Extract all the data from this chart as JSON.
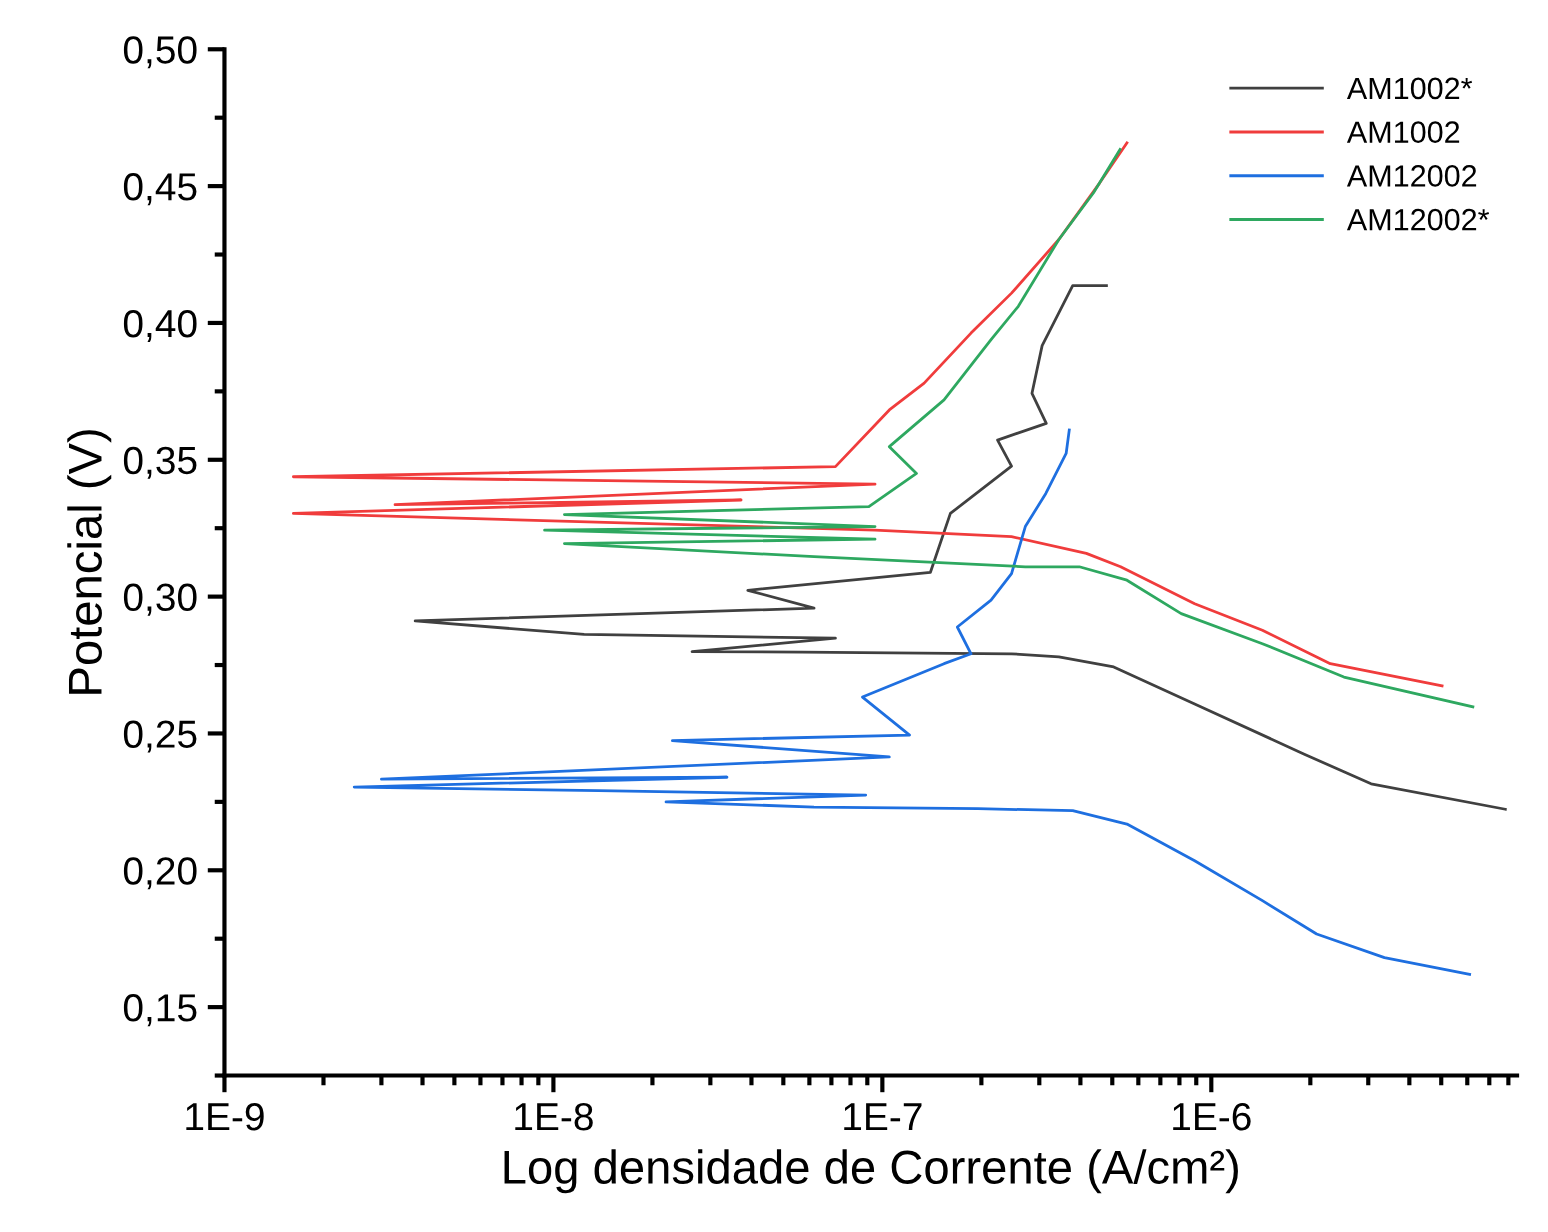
{
  "chart_data": {
    "type": "line",
    "xlabel": "Log densidade de Corrente (A/cm²)",
    "ylabel": "Potencial (V)",
    "log": "x",
    "xlim": [
      1e-09,
      8.5e-06
    ],
    "ylim": [
      0.125,
      0.5
    ],
    "xticks": [
      {
        "value": 1e-09,
        "label": "1E-9"
      },
      {
        "value": 1e-08,
        "label": "1E-8"
      },
      {
        "value": 1e-07,
        "label": "1E-7"
      },
      {
        "value": 1e-06,
        "label": "1E-6"
      }
    ],
    "yticks": [
      {
        "value": 0.15,
        "label": "0,15"
      },
      {
        "value": 0.2,
        "label": "0,20"
      },
      {
        "value": 0.25,
        "label": "0,25"
      },
      {
        "value": 0.3,
        "label": "0,30"
      },
      {
        "value": 0.35,
        "label": "0,35"
      },
      {
        "value": 0.4,
        "label": "0,40"
      },
      {
        "value": 0.45,
        "label": "0,45"
      },
      {
        "value": 0.5,
        "label": "0,50"
      }
    ],
    "grid": false,
    "legend": "top right",
    "marker": "none",
    "line_style": "solid",
    "series": [
      {
        "name": "AM1002*",
        "color": "#404040",
        "x": [
          7.83e-06,
          3.06e-06,
          1.91e-06,
          8.9e-07,
          5.05e-07,
          3.44e-07,
          2.47e-07,
          5.7e-08,
          2.64e-08,
          7.2e-08,
          1.24e-08,
          3.8e-09,
          6.2e-08,
          3.9e-08,
          1.4e-07,
          1.61e-07,
          2.47e-07,
          2.24e-07,
          3.15e-07,
          2.85e-07,
          3.06e-07,
          3.79e-07,
          4.8e-07
        ],
        "values": [
          0.2223,
          0.2316,
          0.2425,
          0.2608,
          0.2743,
          0.278,
          0.2791,
          0.2797,
          0.2799,
          0.2848,
          0.2862,
          0.2911,
          0.2958,
          0.3023,
          0.3089,
          0.3304,
          0.3477,
          0.3572,
          0.3633,
          0.3743,
          0.3917,
          0.4136,
          0.4136
        ]
      },
      {
        "name": "AM1002",
        "color": "#f03c3c",
        "x": [
          5.03e-06,
          2.3e-06,
          1.43e-06,
          8.9e-07,
          5.3e-07,
          4.17e-07,
          2.47e-07,
          9.5e-08,
          1.62e-09,
          3.72e-08,
          3.3e-09,
          9.5e-08,
          1.62e-09,
          7.2e-08,
          1.05e-07,
          1.34e-07,
          1.86e-07,
          2.47e-07,
          3.44e-07,
          4.58e-07,
          5.54e-07
        ],
        "values": [
          0.2674,
          0.2755,
          0.2877,
          0.2974,
          0.3109,
          0.3158,
          0.3219,
          0.3243,
          0.3304,
          0.3353,
          0.3336,
          0.3411,
          0.3438,
          0.3475,
          0.3682,
          0.378,
          0.3963,
          0.4109,
          0.4305,
          0.4512,
          0.4658
        ]
      },
      {
        "name": "AM12002",
        "color": "#1e6fe0",
        "x": [
          6.1e-06,
          3.36e-06,
          2.09e-06,
          1.43e-06,
          8.9e-07,
          5.54e-07,
          3.79e-07,
          1.95e-07,
          6.2e-08,
          2.2e-08,
          8.9e-08,
          1.37e-08,
          2.48e-09,
          3.37e-08,
          3e-09,
          1.05e-07,
          2.3e-08,
          1.21e-07,
          8.7e-08,
          1.54e-07,
          1.86e-07,
          1.69e-07,
          2.14e-07,
          2.47e-07,
          2.72e-07,
          3.14e-07,
          3.62e-07,
          3.7e-07
        ],
        "values": [
          0.162,
          0.1681,
          0.1767,
          0.1889,
          0.2035,
          0.2169,
          0.2218,
          0.2225,
          0.2231,
          0.225,
          0.2275,
          0.2291,
          0.2304,
          0.234,
          0.2333,
          0.2414,
          0.2474,
          0.2494,
          0.2633,
          0.2755,
          0.2791,
          0.2889,
          0.2987,
          0.3084,
          0.3256,
          0.3377,
          0.3523,
          0.3609
        ]
      },
      {
        "name": "AM12002*",
        "color": "#2ea860",
        "x": [
          6.24e-06,
          2.53e-06,
          1.43e-06,
          8.1e-07,
          5.54e-07,
          3.97e-07,
          2.72e-07,
          6.2e-08,
          1.08e-08,
          9.5e-08,
          9.4e-09,
          9.5e-08,
          1.08e-08,
          9.1e-08,
          1.27e-07,
          1.05e-07,
          1.54e-07,
          2.14e-07,
          2.59e-07,
          3.44e-07,
          4.38e-07,
          5.28e-07
        ],
        "values": [
          0.2597,
          0.2706,
          0.2828,
          0.2938,
          0.306,
          0.3109,
          0.3109,
          0.3146,
          0.3194,
          0.321,
          0.3243,
          0.3256,
          0.33,
          0.3329,
          0.345,
          0.3548,
          0.3719,
          0.3939,
          0.4061,
          0.4305,
          0.4475,
          0.4634
        ]
      }
    ]
  }
}
